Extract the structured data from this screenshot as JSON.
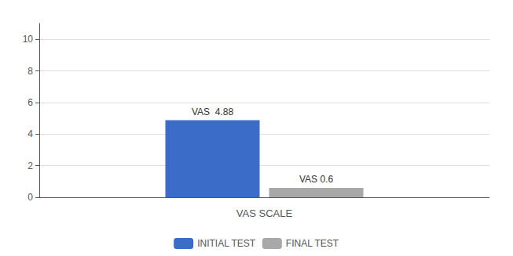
{
  "chart_data": {
    "type": "bar",
    "xlabel": "VAS SCALE",
    "categories": [
      null
    ],
    "series": [
      {
        "name": "INITIAL TEST",
        "color": "#3b6cc7",
        "values": [
          4.88
        ],
        "value_labels": [
          "VAS  4.88"
        ]
      },
      {
        "name": "FINAL TEST",
        "color": "#a8a8a8",
        "values": [
          0.6
        ],
        "value_labels": [
          "VAS 0.6"
        ]
      }
    ],
    "ylim": [
      0,
      11
    ],
    "yticks": [
      0,
      2,
      4,
      6,
      8,
      10
    ],
    "grid": true,
    "legend": "bottom",
    "data_labels": true,
    "tick_labels": "y"
  }
}
